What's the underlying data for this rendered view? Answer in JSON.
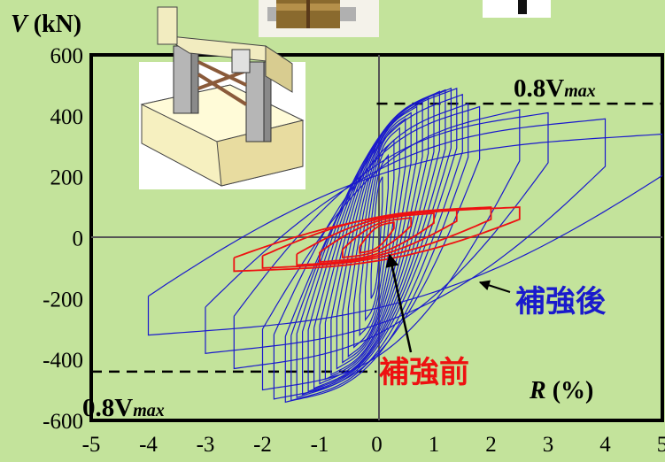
{
  "chart_data": {
    "type": "line",
    "ylabel_var": "V",
    "ylabel_unit": " (kN)",
    "xlabel_var": "R",
    "xlabel_unit": " (%)",
    "xlim": [
      -5,
      5
    ],
    "ylim": [
      -600,
      600
    ],
    "x_ticks": [
      "-5",
      "-4",
      "-3",
      "-2",
      "-1",
      "0",
      "1",
      "2",
      "3",
      "4",
      "5"
    ],
    "y_ticks": [
      "600",
      "400",
      "200",
      "0",
      "-200",
      "-400",
      "-600"
    ],
    "reference_lines": [
      {
        "label_main": "0.8V",
        "label_sub": "max",
        "y": 440,
        "x_start": 0.0,
        "x_end": 5.0
      },
      {
        "label_main": "0.8V",
        "label_sub": "max",
        "y": -440,
        "x_start": -5.0,
        "x_end": 0.0
      }
    ],
    "series": [
      {
        "name": "補強後",
        "color": "#1a1acc",
        "loops": [
          {
            "xmax": 0.1,
            "xmin": -0.1,
            "ypos": 200,
            "yneg": -200
          },
          {
            "xmax": 0.2,
            "xmin": -0.2,
            "ypos": 270,
            "yneg": -270
          },
          {
            "xmax": 0.3,
            "xmin": -0.3,
            "ypos": 320,
            "yneg": -320
          },
          {
            "xmax": 0.4,
            "xmin": -0.4,
            "ypos": 360,
            "yneg": -360
          },
          {
            "xmax": 0.5,
            "xmin": -0.5,
            "ypos": 390,
            "yneg": -390
          },
          {
            "xmax": 0.6,
            "xmin": -0.6,
            "ypos": 410,
            "yneg": -410
          },
          {
            "xmax": 0.7,
            "xmin": -0.7,
            "ypos": 430,
            "yneg": -430
          },
          {
            "xmax": 0.8,
            "xmin": -0.8,
            "ypos": 445,
            "yneg": -450
          },
          {
            "xmax": 0.9,
            "xmin": -0.9,
            "ypos": 460,
            "yneg": -465
          },
          {
            "xmax": 1.0,
            "xmin": -1.0,
            "ypos": 470,
            "yneg": -480
          },
          {
            "xmax": 1.1,
            "xmin": -1.1,
            "ypos": 480,
            "yneg": -495
          },
          {
            "xmax": 1.2,
            "xmin": -1.2,
            "ypos": 485,
            "yneg": -505
          },
          {
            "xmax": 1.3,
            "xmin": -1.3,
            "ypos": 490,
            "yneg": -515
          },
          {
            "xmax": 1.4,
            "xmin": -1.4,
            "ypos": 490,
            "yneg": -525
          },
          {
            "xmax": 1.5,
            "xmin": -1.5,
            "ypos": 470,
            "yneg": -535
          },
          {
            "xmax": 1.6,
            "xmin": -1.6,
            "ypos": 440,
            "yneg": -540
          },
          {
            "xmax": 1.8,
            "xmin": -1.8,
            "ypos": 430,
            "yneg": -530
          },
          {
            "xmax": 2.5,
            "xmin": -2.0,
            "ypos": 420,
            "yneg": -500
          },
          {
            "xmax": 3.0,
            "xmin": -2.5,
            "ypos": 410,
            "yneg": -430
          },
          {
            "xmax": 4.0,
            "xmin": -3.0,
            "ypos": 390,
            "yneg": -380
          },
          {
            "xmax": 5.0,
            "xmin": -4.0,
            "ypos": 340,
            "yneg": -320
          }
        ]
      },
      {
        "name": "補強前",
        "color": "#ee1111",
        "loops": [
          {
            "xmax": 0.3,
            "xmin": -0.3,
            "ypos": 50,
            "yneg": -50
          },
          {
            "xmax": 0.6,
            "xmin": -0.6,
            "ypos": 65,
            "yneg": -65
          },
          {
            "xmax": 1.0,
            "xmin": -1.0,
            "ypos": 80,
            "yneg": -80
          },
          {
            "xmax": 1.4,
            "xmin": -1.4,
            "ypos": 90,
            "yneg": -90
          },
          {
            "xmax": 2.0,
            "xmin": -2.0,
            "ypos": 100,
            "yneg": -100
          },
          {
            "xmax": 2.5,
            "xmin": -2.5,
            "ypos": 100,
            "yneg": -110
          }
        ]
      }
    ],
    "annotations": [
      {
        "text": "補強後",
        "color": "#1a1acc",
        "arrow_to": [
          2.2,
          -140
        ]
      },
      {
        "text": "補強前",
        "color": "#ee1111",
        "arrow_to": [
          0.2,
          -60
        ]
      }
    ]
  },
  "icons": {
    "specimen": "test-specimen-frame-icon",
    "photo": "specimen-photo-thumbnail",
    "fragment": "cropped-image-fragment"
  }
}
